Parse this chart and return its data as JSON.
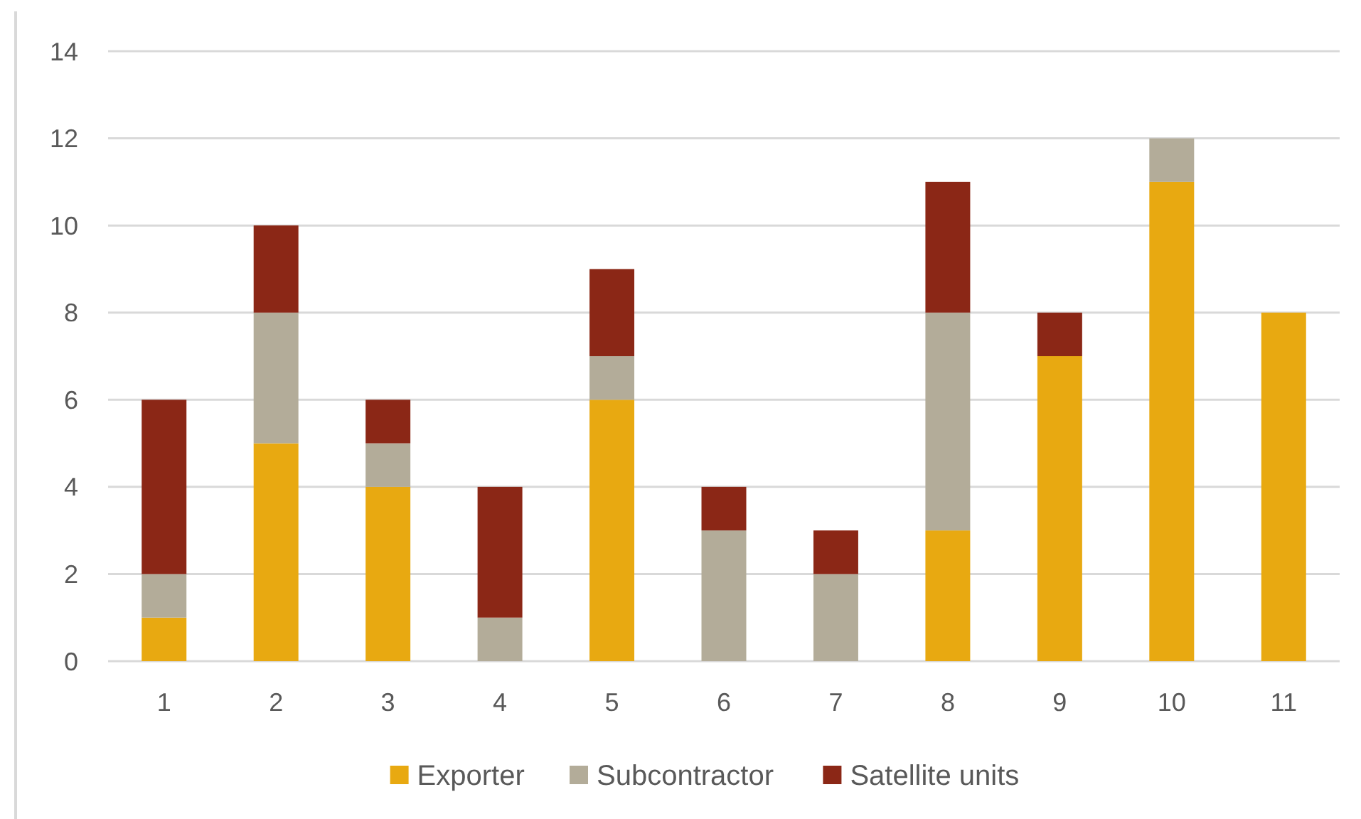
{
  "chart_data": {
    "type": "bar",
    "stacked": true,
    "categories": [
      "1",
      "2",
      "3",
      "4",
      "5",
      "6",
      "7",
      "8",
      "9",
      "10",
      "11"
    ],
    "series": [
      {
        "name": "Exporter",
        "color": "#e8a911",
        "values": [
          1,
          5,
          4,
          0,
          6,
          0,
          0,
          3,
          7,
          11,
          8
        ]
      },
      {
        "name": "Subcontractor",
        "color": "#b3ac99",
        "values": [
          1,
          3,
          1,
          1,
          1,
          3,
          2,
          5,
          0,
          1,
          0
        ]
      },
      {
        "name": "Satellite units",
        "color": "#8b2716",
        "values": [
          4,
          2,
          1,
          3,
          2,
          1,
          1,
          3,
          1,
          0,
          0
        ]
      }
    ],
    "ylim": [
      0,
      14
    ],
    "yticks": [
      0,
      2,
      4,
      6,
      8,
      10,
      12,
      14
    ],
    "grid": "y",
    "legend": "bottom"
  }
}
